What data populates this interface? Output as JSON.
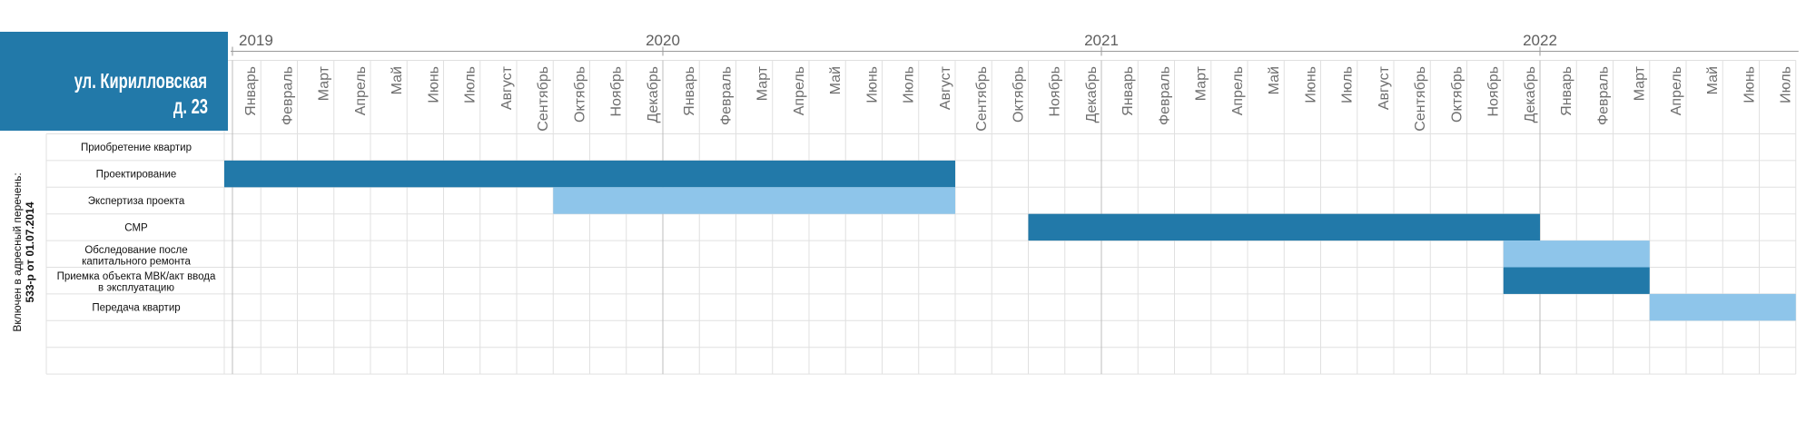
{
  "colors": {
    "primary": "#2279a9",
    "secondary": "#8ec5ea"
  },
  "chart_data": {
    "type": "bar",
    "orientation": "horizontal",
    "title": [
      "ул. Кирилловская",
      "д. 23"
    ],
    "note": [
      "Включен в адресный перечень:",
      "533-р от 01.07.2014"
    ],
    "x_range": [
      "2019-01",
      "2022-07"
    ],
    "years": [
      "2019",
      "2020",
      "2021",
      "2022"
    ],
    "months": [
      "Январь",
      "Февраль",
      "Март",
      "Апрель",
      "Май",
      "Июнь",
      "Июль",
      "Август",
      "Сентябрь",
      "Октябрь",
      "Ноябрь",
      "Декабрь",
      "Январь",
      "Февраль",
      "Март",
      "Апрель",
      "Май",
      "Июнь",
      "Июль",
      "Август",
      "Сентябрь",
      "Октябрь",
      "Ноябрь",
      "Декабрь",
      "Январь",
      "Февраль",
      "Март",
      "Апрель",
      "Май",
      "Июнь",
      "Июль",
      "Август",
      "Сентябрь",
      "Октябрь",
      "Ноябрь",
      "Декабрь",
      "Январь",
      "Февраль",
      "Март",
      "Апрель",
      "Май",
      "Июнь",
      "Июль"
    ],
    "tasks": [
      {
        "label": [
          "Приобретение квартир"
        ]
      },
      {
        "label": [
          "Проектирование"
        ],
        "start": "2019-01",
        "end": "2020-08",
        "color": "#2279a9"
      },
      {
        "label": [
          "Экспертиза проекта"
        ],
        "start": "2019-10",
        "end": "2020-08",
        "color": "#8ec5ea"
      },
      {
        "label": [
          "СМР"
        ],
        "start": "2020-11",
        "end": "2021-12",
        "color": "#2279a9"
      },
      {
        "label": [
          "Обследование после",
          "капитального ремонта"
        ],
        "start": "2021-12",
        "end": "2022-03",
        "color": "#8ec5ea"
      },
      {
        "label": [
          "Приемка объекта МВК/акт ввода",
          "в эксплуатацию"
        ],
        "start": "2021-12",
        "end": "2022-03",
        "color": "#2279a9"
      },
      {
        "label": [
          "Передача квартир"
        ],
        "start": "2022-04",
        "end": "2022-07",
        "color": "#8ec5ea"
      },
      {
        "label": []
      },
      {
        "label": []
      }
    ],
    "grid": true
  }
}
